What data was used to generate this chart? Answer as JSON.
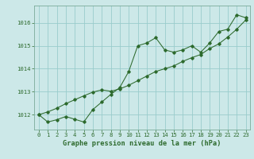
{
  "xlabel": "Graphe pression niveau de la mer (hPa)",
  "bg_color": "#cce8e8",
  "grid_color": "#99cccc",
  "line_color": "#2d6a2d",
  "hours": [
    0,
    1,
    2,
    3,
    4,
    5,
    6,
    7,
    8,
    9,
    10,
    11,
    12,
    13,
    14,
    15,
    16,
    17,
    18,
    19,
    20,
    21,
    22,
    23
  ],
  "series1": [
    1012.0,
    1011.68,
    1011.78,
    1011.92,
    1011.8,
    1011.68,
    1012.22,
    1012.55,
    1012.88,
    1013.18,
    1013.88,
    1015.0,
    1015.12,
    1015.35,
    1014.82,
    1014.72,
    1014.82,
    1015.0,
    1014.72,
    1015.12,
    1015.62,
    1015.72,
    1016.35,
    1016.22
  ],
  "series2": [
    1012.0,
    1012.12,
    1012.28,
    1012.48,
    1012.65,
    1012.82,
    1012.98,
    1013.08,
    1013.02,
    1013.12,
    1013.28,
    1013.48,
    1013.68,
    1013.88,
    1014.0,
    1014.12,
    1014.32,
    1014.48,
    1014.62,
    1014.88,
    1015.08,
    1015.38,
    1015.72,
    1016.12
  ],
  "yticks": [
    1012,
    1013,
    1014,
    1015,
    1016
  ],
  "ylim": [
    1011.35,
    1016.75
  ],
  "xlim": [
    -0.5,
    23.5
  ],
  "xticks": [
    0,
    1,
    2,
    3,
    4,
    5,
    6,
    7,
    8,
    9,
    10,
    11,
    12,
    13,
    14,
    15,
    16,
    17,
    18,
    19,
    20,
    21,
    22,
    23
  ],
  "tick_fontsize": 5.2,
  "label_fontsize": 6.2,
  "marker": "D",
  "marker_size": 1.8,
  "linewidth": 0.75
}
